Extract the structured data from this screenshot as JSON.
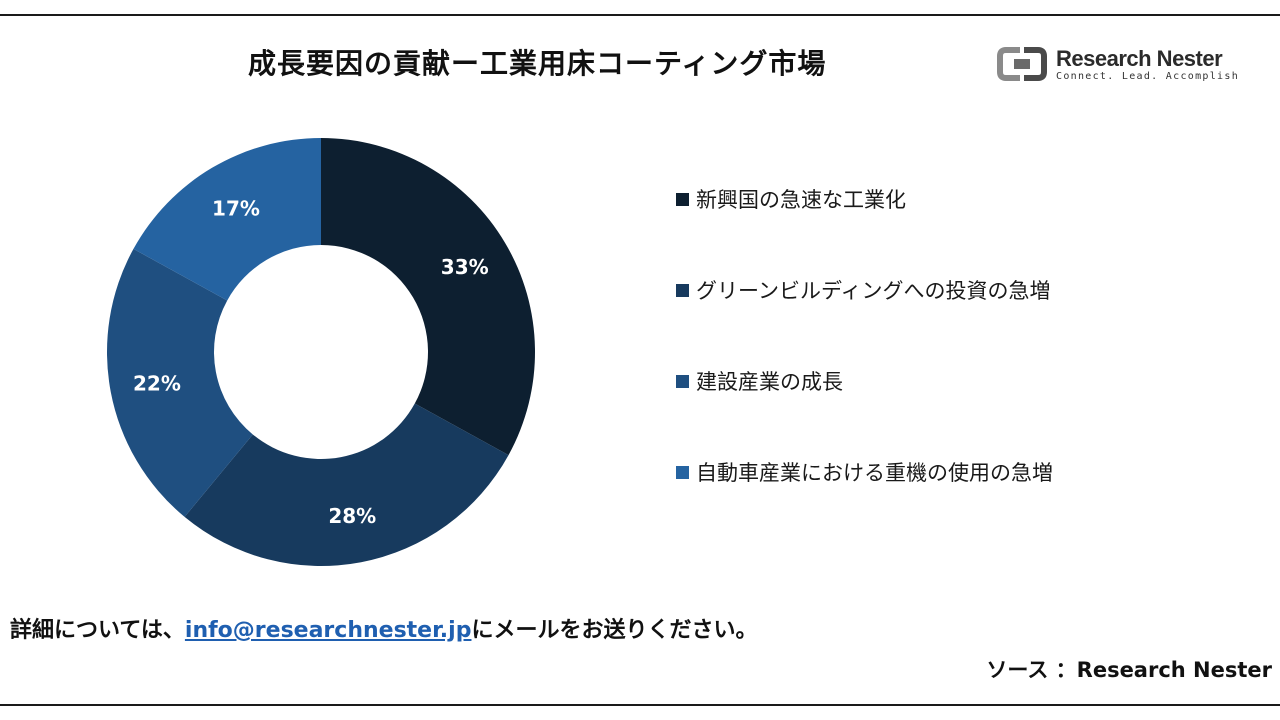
{
  "header": {
    "title": "成長要因の貢献ー工業用床コーティング市場",
    "logo_name": "Research Nester",
    "logo_tagline": "Connect. Lead. Accomplish"
  },
  "chart_data": {
    "type": "pie",
    "style": "donut",
    "categories": [
      "新興国の急速な工業化",
      "グリーンビルディングへの投資の急増",
      "建設産業の成長",
      "自動車産業における重機の使用の急増"
    ],
    "values": [
      33,
      28,
      22,
      17
    ],
    "value_labels": [
      "33%",
      "28%",
      "22%",
      "17%"
    ],
    "colors": [
      "#0d1f30",
      "#173a5e",
      "#1f4f80",
      "#2563a1"
    ],
    "legend_position": "right"
  },
  "footer": {
    "contact_prefix": "詳細については、",
    "contact_email": "info@researchnester.jp",
    "contact_suffix": "にメールをお送りください。",
    "source": "ソース ：Research Nester"
  }
}
